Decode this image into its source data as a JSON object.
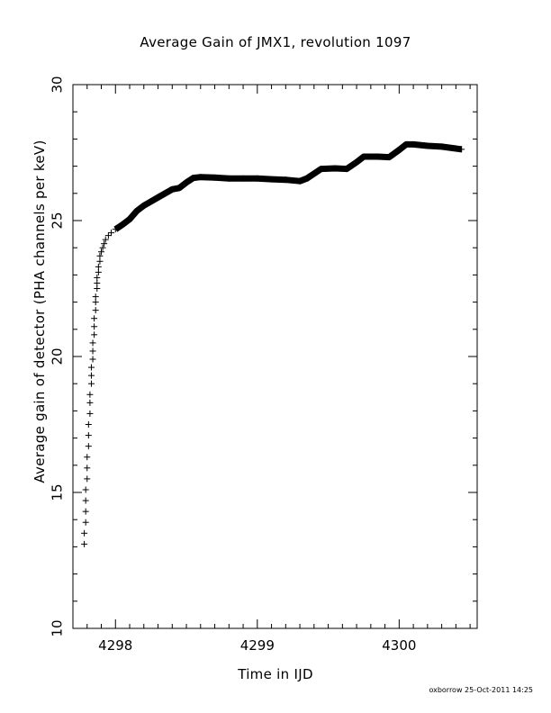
{
  "chart_data": {
    "type": "scatter",
    "title": "Average Gain of JMX1, revolution 1097",
    "xlabel": "Time in IJD",
    "ylabel": "Average gain of detector (PHA channels per keV)",
    "xlim": [
      4297.7,
      4300.55
    ],
    "ylim": [
      10,
      30
    ],
    "x_ticks": [
      4298,
      4299,
      4300
    ],
    "x_tick_labels": [
      "4298",
      "4299",
      "4300"
    ],
    "y_ticks": [
      10,
      15,
      20,
      25,
      30
    ],
    "y_tick_labels": [
      "10",
      "15",
      "20",
      "25",
      "30"
    ],
    "marker": "+",
    "color": "#000000",
    "series": [
      {
        "points": [
          [
            4297.78,
            13.1
          ],
          [
            4297.78,
            13.5
          ],
          [
            4297.79,
            13.9
          ],
          [
            4297.79,
            14.3
          ],
          [
            4297.79,
            14.7
          ],
          [
            4297.79,
            15.1
          ],
          [
            4297.8,
            15.5
          ],
          [
            4297.8,
            15.9
          ],
          [
            4297.8,
            16.3
          ],
          [
            4297.81,
            16.7
          ],
          [
            4297.81,
            17.1
          ],
          [
            4297.81,
            17.5
          ],
          [
            4297.82,
            17.9
          ],
          [
            4297.82,
            18.3
          ],
          [
            4297.82,
            18.6
          ],
          [
            4297.83,
            19.0
          ],
          [
            4297.83,
            19.3
          ],
          [
            4297.83,
            19.6
          ],
          [
            4297.84,
            19.9
          ],
          [
            4297.84,
            20.2
          ],
          [
            4297.84,
            20.5
          ],
          [
            4297.85,
            20.8
          ],
          [
            4297.85,
            21.1
          ],
          [
            4297.85,
            21.4
          ],
          [
            4297.86,
            21.7
          ],
          [
            4297.86,
            22.0
          ],
          [
            4297.86,
            22.2
          ],
          [
            4297.87,
            22.5
          ],
          [
            4297.87,
            22.7
          ],
          [
            4297.87,
            22.9
          ],
          [
            4297.88,
            23.1
          ],
          [
            4297.88,
            23.3
          ],
          [
            4297.89,
            23.5
          ],
          [
            4297.89,
            23.7
          ],
          [
            4297.9,
            23.85
          ],
          [
            4297.91,
            24.0
          ],
          [
            4297.92,
            24.15
          ],
          [
            4297.93,
            24.3
          ],
          [
            4297.95,
            24.45
          ],
          [
            4297.97,
            24.55
          ],
          [
            4298.0,
            24.68
          ],
          [
            4298.05,
            24.85
          ],
          [
            4298.1,
            25.05
          ],
          [
            4298.15,
            25.35
          ],
          [
            4298.2,
            25.55
          ],
          [
            4298.3,
            25.85
          ],
          [
            4298.4,
            26.15
          ],
          [
            4298.45,
            26.2
          ],
          [
            4298.5,
            26.4
          ],
          [
            4298.55,
            26.57
          ],
          [
            4298.6,
            26.6
          ],
          [
            4298.7,
            26.58
          ],
          [
            4298.8,
            26.55
          ],
          [
            4298.9,
            26.55
          ],
          [
            4299.0,
            26.55
          ],
          [
            4299.1,
            26.52
          ],
          [
            4299.2,
            26.5
          ],
          [
            4299.3,
            26.45
          ],
          [
            4299.35,
            26.55
          ],
          [
            4299.45,
            26.9
          ],
          [
            4299.55,
            26.92
          ],
          [
            4299.63,
            26.9
          ],
          [
            4299.7,
            27.15
          ],
          [
            4299.75,
            27.35
          ],
          [
            4299.85,
            27.35
          ],
          [
            4299.93,
            27.33
          ],
          [
            4300.0,
            27.6
          ],
          [
            4300.05,
            27.8
          ],
          [
            4300.1,
            27.8
          ],
          [
            4300.2,
            27.75
          ],
          [
            4300.3,
            27.72
          ],
          [
            4300.4,
            27.65
          ],
          [
            4300.44,
            27.62
          ]
        ]
      }
    ]
  },
  "footer": {
    "stamp": "oxborrow 25-Oct-2011 14:25"
  }
}
